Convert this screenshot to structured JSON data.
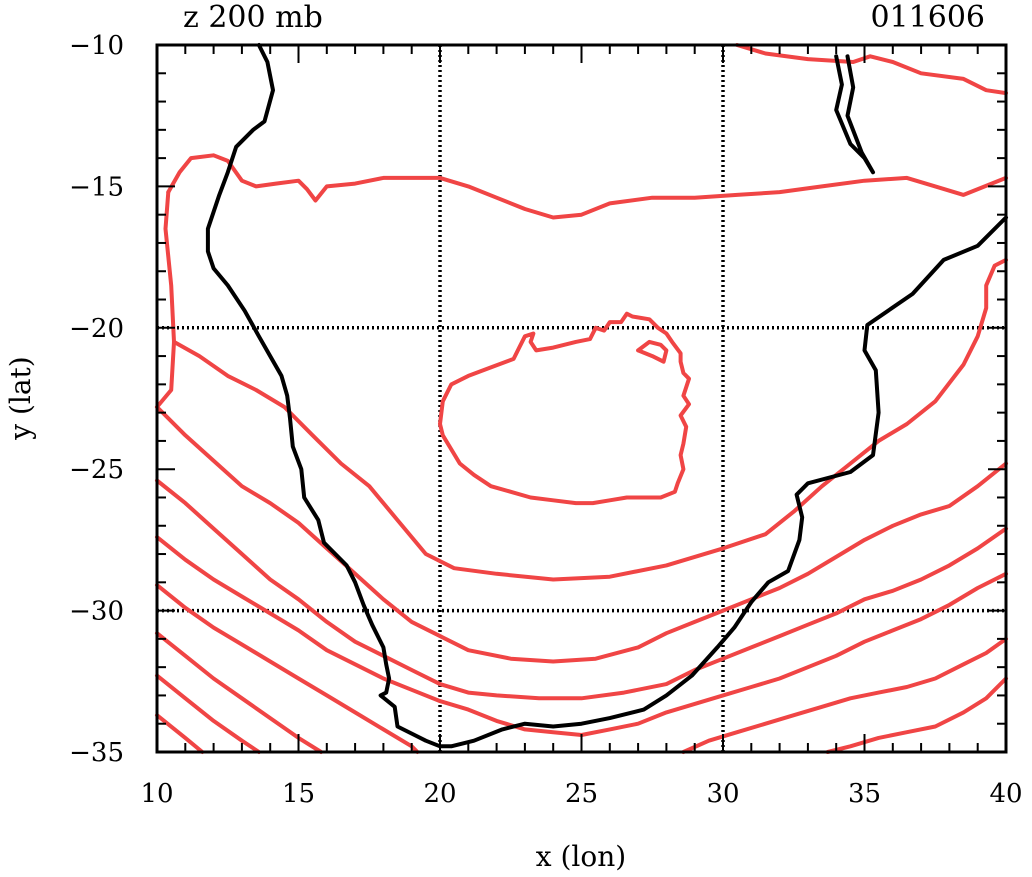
{
  "chart_data": {
    "type": "contour-map",
    "title_left": "z 200 mb",
    "title_right": "011606",
    "xlabel": "x (lon)",
    "ylabel": "y (lat)",
    "xlim": [
      10,
      40
    ],
    "ylim": [
      -35,
      -10
    ],
    "x_ticks": [
      10,
      15,
      20,
      25,
      30,
      35,
      40
    ],
    "y_ticks": [
      -10,
      -15,
      -20,
      -25,
      -30,
      -35
    ],
    "gridlines_x": [
      20,
      30
    ],
    "gridlines_y": [
      -20,
      -30
    ],
    "coastline_color": "#000000",
    "contour_color": "#f04545",
    "coastline": [
      [
        [
          13.6,
          -10
        ],
        [
          13.9,
          -10.6
        ],
        [
          14.1,
          -11.6
        ],
        [
          13.8,
          -12.7
        ],
        [
          13.4,
          -13.0
        ],
        [
          12.8,
          -13.6
        ],
        [
          12.5,
          -14.5
        ],
        [
          12.2,
          -15.3
        ],
        [
          12.0,
          -15.9
        ],
        [
          11.8,
          -16.5
        ],
        [
          11.8,
          -17.3
        ],
        [
          12.0,
          -17.9
        ],
        [
          12.5,
          -18.5
        ],
        [
          13.1,
          -19.4
        ],
        [
          13.6,
          -20.3
        ],
        [
          14.0,
          -21.0
        ],
        [
          14.4,
          -21.7
        ],
        [
          14.6,
          -22.4
        ],
        [
          14.7,
          -23.2
        ],
        [
          14.8,
          -24.2
        ],
        [
          15.1,
          -25.0
        ],
        [
          15.2,
          -26.0
        ],
        [
          15.7,
          -26.8
        ],
        [
          15.9,
          -27.6
        ],
        [
          16.7,
          -28.4
        ],
        [
          17.0,
          -29.0
        ],
        [
          17.3,
          -29.8
        ],
        [
          17.6,
          -30.5
        ],
        [
          18.0,
          -31.3
        ],
        [
          18.1,
          -31.9
        ],
        [
          18.2,
          -32.4
        ],
        [
          18.1,
          -32.9
        ],
        [
          17.9,
          -33.0
        ],
        [
          18.4,
          -33.4
        ],
        [
          18.5,
          -34.1
        ],
        [
          19.1,
          -34.4
        ],
        [
          19.5,
          -34.6
        ],
        [
          20.0,
          -34.8
        ],
        [
          20.4,
          -34.8
        ],
        [
          21.2,
          -34.6
        ],
        [
          22.2,
          -34.2
        ],
        [
          23.0,
          -34.0
        ],
        [
          24.0,
          -34.1
        ],
        [
          25.0,
          -34.0
        ],
        [
          26.0,
          -33.8
        ],
        [
          27.2,
          -33.5
        ],
        [
          28.0,
          -33.0
        ],
        [
          28.9,
          -32.3
        ],
        [
          29.8,
          -31.3
        ],
        [
          30.4,
          -30.6
        ],
        [
          31.0,
          -29.7
        ],
        [
          31.6,
          -29.0
        ],
        [
          32.3,
          -28.6
        ],
        [
          32.7,
          -27.5
        ],
        [
          32.8,
          -26.7
        ],
        [
          32.6,
          -25.9
        ],
        [
          33.0,
          -25.5
        ],
        [
          34.5,
          -25.1
        ],
        [
          35.3,
          -24.5
        ],
        [
          35.5,
          -23.0
        ],
        [
          35.4,
          -21.5
        ],
        [
          35.0,
          -20.8
        ],
        [
          35.1,
          -19.9
        ],
        [
          36.7,
          -18.8
        ],
        [
          37.8,
          -17.6
        ],
        [
          39.0,
          -17.1
        ],
        [
          40.0,
          -16.1
        ]
      ],
      [
        [
          34.4,
          -10.4
        ],
        [
          34.6,
          -11.5
        ],
        [
          34.4,
          -12.5
        ],
        [
          34.9,
          -13.8
        ],
        [
          35.3,
          -14.5
        ],
        [
          35.0,
          -14.0
        ],
        [
          34.5,
          -13.5
        ],
        [
          34.0,
          -12.3
        ],
        [
          34.2,
          -11.4
        ],
        [
          34.0,
          -10.4
        ]
      ]
    ],
    "contours": [
      [
        [
          30.5,
          -10.0
        ],
        [
          31.5,
          -10.3
        ],
        [
          33.0,
          -10.5
        ],
        [
          34.6,
          -10.6
        ],
        [
          35.2,
          -10.4
        ],
        [
          36.0,
          -10.6
        ],
        [
          37.0,
          -11.0
        ],
        [
          38.5,
          -11.2
        ],
        [
          39.3,
          -11.6
        ],
        [
          40.0,
          -11.7
        ]
      ],
      [
        [
          10.4,
          -15.2
        ],
        [
          10.8,
          -14.5
        ],
        [
          11.2,
          -14.0
        ],
        [
          12.0,
          -13.9
        ],
        [
          12.5,
          -14.1
        ],
        [
          13.0,
          -14.8
        ],
        [
          13.5,
          -15.0
        ],
        [
          14.2,
          -14.9
        ],
        [
          15.0,
          -14.8
        ],
        [
          15.3,
          -15.1
        ],
        [
          15.6,
          -15.5
        ],
        [
          16.0,
          -15.0
        ],
        [
          17.0,
          -14.9
        ],
        [
          18.0,
          -14.7
        ],
        [
          19.0,
          -14.7
        ],
        [
          20.0,
          -14.7
        ],
        [
          21.0,
          -15.0
        ],
        [
          22.0,
          -15.4
        ],
        [
          23.0,
          -15.8
        ],
        [
          24.0,
          -16.1
        ],
        [
          25.0,
          -16.0
        ],
        [
          26.0,
          -15.6
        ],
        [
          27.5,
          -15.4
        ],
        [
          29.0,
          -15.4
        ],
        [
          30.5,
          -15.3
        ],
        [
          32.0,
          -15.2
        ],
        [
          33.5,
          -15.0
        ],
        [
          35.0,
          -14.8
        ],
        [
          36.5,
          -14.7
        ],
        [
          37.5,
          -15.0
        ],
        [
          38.5,
          -15.3
        ],
        [
          40.0,
          -14.7
        ]
      ],
      [
        [
          10.0,
          -22.8
        ],
        [
          10.5,
          -22.2
        ],
        [
          10.6,
          -20.5
        ],
        [
          10.5,
          -18.5
        ],
        [
          10.3,
          -16.5
        ],
        [
          10.4,
          -15.2
        ]
      ],
      [
        [
          10.6,
          -20.5
        ],
        [
          11.5,
          -21.0
        ],
        [
          12.5,
          -21.7
        ],
        [
          13.5,
          -22.2
        ],
        [
          14.5,
          -22.8
        ],
        [
          15.5,
          -23.8
        ],
        [
          16.5,
          -24.8
        ],
        [
          17.5,
          -25.6
        ],
        [
          18.5,
          -26.8
        ],
        [
          19.5,
          -28.0
        ],
        [
          20.5,
          -28.5
        ],
        [
          22.0,
          -28.7
        ],
        [
          24.0,
          -28.9
        ],
        [
          26.0,
          -28.8
        ],
        [
          28.0,
          -28.4
        ],
        [
          30.0,
          -27.8
        ],
        [
          31.5,
          -27.3
        ],
        [
          32.5,
          -26.5
        ],
        [
          33.5,
          -25.6
        ],
        [
          34.5,
          -24.8
        ],
        [
          35.5,
          -24.0
        ],
        [
          36.5,
          -23.4
        ],
        [
          37.5,
          -22.6
        ],
        [
          38.5,
          -21.3
        ],
        [
          39.0,
          -20.3
        ],
        [
          39.3,
          -19.3
        ],
        [
          39.3,
          -18.5
        ],
        [
          39.6,
          -17.8
        ],
        [
          40.0,
          -17.6
        ]
      ],
      [
        [
          10.0,
          -22.8
        ],
        [
          11.0,
          -23.8
        ],
        [
          12.0,
          -24.7
        ],
        [
          13.0,
          -25.6
        ],
        [
          14.0,
          -26.2
        ],
        [
          15.0,
          -26.9
        ],
        [
          16.0,
          -27.8
        ],
        [
          17.0,
          -28.7
        ],
        [
          18.0,
          -29.6
        ],
        [
          19.0,
          -30.4
        ],
        [
          20.0,
          -30.9
        ],
        [
          21.0,
          -31.4
        ],
        [
          22.5,
          -31.7
        ],
        [
          24.0,
          -31.8
        ],
        [
          25.5,
          -31.7
        ],
        [
          27.0,
          -31.3
        ],
        [
          28.0,
          -30.8
        ],
        [
          29.0,
          -30.4
        ],
        [
          30.0,
          -30.0
        ],
        [
          31.0,
          -29.6
        ],
        [
          32.0,
          -29.2
        ],
        [
          33.0,
          -28.7
        ],
        [
          34.0,
          -28.1
        ],
        [
          35.0,
          -27.5
        ],
        [
          36.0,
          -27.0
        ],
        [
          37.0,
          -26.6
        ],
        [
          38.0,
          -26.3
        ],
        [
          39.0,
          -25.6
        ],
        [
          40.0,
          -24.8
        ]
      ],
      [
        [
          10.0,
          -25.4
        ],
        [
          11.0,
          -26.2
        ],
        [
          12.0,
          -27.1
        ],
        [
          13.0,
          -28.0
        ],
        [
          14.0,
          -28.9
        ],
        [
          15.0,
          -29.6
        ],
        [
          16.0,
          -30.4
        ],
        [
          17.0,
          -31.1
        ],
        [
          18.0,
          -31.6
        ],
        [
          19.0,
          -32.1
        ],
        [
          20.0,
          -32.6
        ],
        [
          21.0,
          -32.9
        ],
        [
          22.0,
          -33.0
        ],
        [
          23.5,
          -33.1
        ],
        [
          25.0,
          -33.1
        ],
        [
          26.5,
          -32.9
        ],
        [
          28.0,
          -32.6
        ],
        [
          29.0,
          -32.1
        ],
        [
          30.0,
          -31.7
        ],
        [
          31.0,
          -31.3
        ],
        [
          32.0,
          -30.9
        ],
        [
          33.0,
          -30.5
        ],
        [
          34.0,
          -30.1
        ],
        [
          35.0,
          -29.6
        ],
        [
          36.0,
          -29.3
        ],
        [
          37.0,
          -28.9
        ],
        [
          38.0,
          -28.4
        ],
        [
          39.0,
          -27.8
        ],
        [
          40.0,
          -27.1
        ]
      ],
      [
        [
          10.0,
          -27.4
        ],
        [
          11.0,
          -28.2
        ],
        [
          12.0,
          -28.9
        ],
        [
          13.0,
          -29.5
        ],
        [
          14.0,
          -30.1
        ],
        [
          15.0,
          -30.7
        ],
        [
          16.0,
          -31.4
        ],
        [
          17.0,
          -31.9
        ],
        [
          18.0,
          -32.4
        ],
        [
          19.0,
          -32.8
        ],
        [
          20.0,
          -33.2
        ],
        [
          21.0,
          -33.5
        ],
        [
          22.0,
          -33.9
        ],
        [
          23.0,
          -34.2
        ],
        [
          24.0,
          -34.3
        ],
        [
          25.0,
          -34.4
        ],
        [
          26.0,
          -34.2
        ],
        [
          27.0,
          -34.0
        ],
        [
          28.0,
          -33.6
        ],
        [
          29.0,
          -33.3
        ],
        [
          30.0,
          -33.0
        ],
        [
          31.0,
          -32.7
        ],
        [
          32.0,
          -32.4
        ],
        [
          33.0,
          -32.0
        ],
        [
          34.0,
          -31.6
        ],
        [
          35.0,
          -31.1
        ],
        [
          36.0,
          -30.7
        ],
        [
          37.0,
          -30.3
        ],
        [
          38.0,
          -29.8
        ],
        [
          39.0,
          -29.2
        ],
        [
          40.0,
          -28.7
        ]
      ],
      [
        [
          10.0,
          -29.1
        ],
        [
          11.0,
          -29.9
        ],
        [
          12.0,
          -30.6
        ],
        [
          13.0,
          -31.2
        ],
        [
          14.0,
          -31.8
        ],
        [
          15.0,
          -32.4
        ],
        [
          16.0,
          -33.0
        ],
        [
          17.0,
          -33.6
        ],
        [
          18.0,
          -34.2
        ],
        [
          19.0,
          -34.8
        ],
        [
          19.2,
          -35.0
        ]
      ],
      [
        [
          10.0,
          -30.8
        ],
        [
          11.0,
          -31.6
        ],
        [
          12.0,
          -32.4
        ],
        [
          13.0,
          -33.1
        ],
        [
          14.0,
          -33.8
        ],
        [
          15.0,
          -34.5
        ],
        [
          15.8,
          -35.0
        ]
      ],
      [
        [
          10.0,
          -32.3
        ],
        [
          11.0,
          -33.1
        ],
        [
          12.0,
          -33.9
        ],
        [
          13.0,
          -34.6
        ],
        [
          13.6,
          -35.0
        ]
      ],
      [
        [
          10.0,
          -33.7
        ],
        [
          11.0,
          -34.5
        ],
        [
          11.6,
          -35.0
        ]
      ],
      [
        [
          28.6,
          -35.0
        ],
        [
          29.5,
          -34.6
        ],
        [
          30.5,
          -34.3
        ],
        [
          31.5,
          -34.0
        ],
        [
          32.5,
          -33.7
        ],
        [
          33.5,
          -33.4
        ],
        [
          34.5,
          -33.1
        ],
        [
          35.5,
          -32.9
        ],
        [
          36.5,
          -32.7
        ],
        [
          37.5,
          -32.4
        ],
        [
          38.5,
          -31.9
        ],
        [
          39.3,
          -31.5
        ],
        [
          40.0,
          -31.0
        ]
      ],
      [
        [
          33.7,
          -35.0
        ],
        [
          34.5,
          -34.8
        ],
        [
          35.5,
          -34.5
        ],
        [
          36.5,
          -34.3
        ],
        [
          37.5,
          -34.1
        ],
        [
          38.5,
          -33.6
        ],
        [
          39.3,
          -33.1
        ],
        [
          40.0,
          -32.4
        ]
      ],
      [
        [
          20.0,
          -23.4
        ],
        [
          20.1,
          -22.6
        ],
        [
          20.4,
          -22.0
        ],
        [
          21.0,
          -21.7
        ],
        [
          21.8,
          -21.4
        ],
        [
          22.6,
          -21.1
        ],
        [
          22.8,
          -20.7
        ],
        [
          23.0,
          -20.3
        ],
        [
          23.3,
          -20.2
        ],
        [
          23.2,
          -20.5
        ],
        [
          23.4,
          -20.8
        ],
        [
          24.0,
          -20.7
        ],
        [
          24.8,
          -20.5
        ],
        [
          25.3,
          -20.4
        ],
        [
          25.5,
          -20.0
        ],
        [
          25.8,
          -20.1
        ],
        [
          26.0,
          -19.8
        ],
        [
          26.4,
          -19.8
        ],
        [
          26.6,
          -19.5
        ],
        [
          26.8,
          -19.6
        ],
        [
          27.4,
          -19.7
        ],
        [
          27.7,
          -20.0
        ],
        [
          28.0,
          -20.2
        ],
        [
          28.2,
          -20.5
        ],
        [
          28.5,
          -20.9
        ],
        [
          28.5,
          -21.2
        ],
        [
          28.6,
          -21.6
        ],
        [
          28.8,
          -21.8
        ],
        [
          28.6,
          -22.4
        ],
        [
          28.8,
          -22.7
        ],
        [
          28.5,
          -23.1
        ],
        [
          28.7,
          -23.5
        ],
        [
          28.6,
          -24.1
        ],
        [
          28.5,
          -24.5
        ],
        [
          28.6,
          -25.0
        ],
        [
          28.4,
          -25.5
        ],
        [
          28.3,
          -25.8
        ],
        [
          27.8,
          -26.0
        ],
        [
          27.2,
          -26.0
        ],
        [
          26.6,
          -26.0
        ],
        [
          26.0,
          -26.1
        ],
        [
          25.4,
          -26.2
        ],
        [
          24.8,
          -26.2
        ],
        [
          24.0,
          -26.1
        ],
        [
          23.2,
          -26.0
        ],
        [
          22.5,
          -25.8
        ],
        [
          21.8,
          -25.6
        ],
        [
          21.2,
          -25.2
        ],
        [
          20.7,
          -24.8
        ],
        [
          20.4,
          -24.3
        ],
        [
          20.1,
          -23.8
        ],
        [
          20.0,
          -23.4
        ]
      ],
      [
        [
          27.0,
          -20.8
        ],
        [
          27.4,
          -20.5
        ],
        [
          27.8,
          -20.6
        ],
        [
          28.0,
          -20.8
        ],
        [
          27.9,
          -21.2
        ],
        [
          27.5,
          -21.0
        ],
        [
          27.0,
          -20.8
        ]
      ]
    ]
  }
}
